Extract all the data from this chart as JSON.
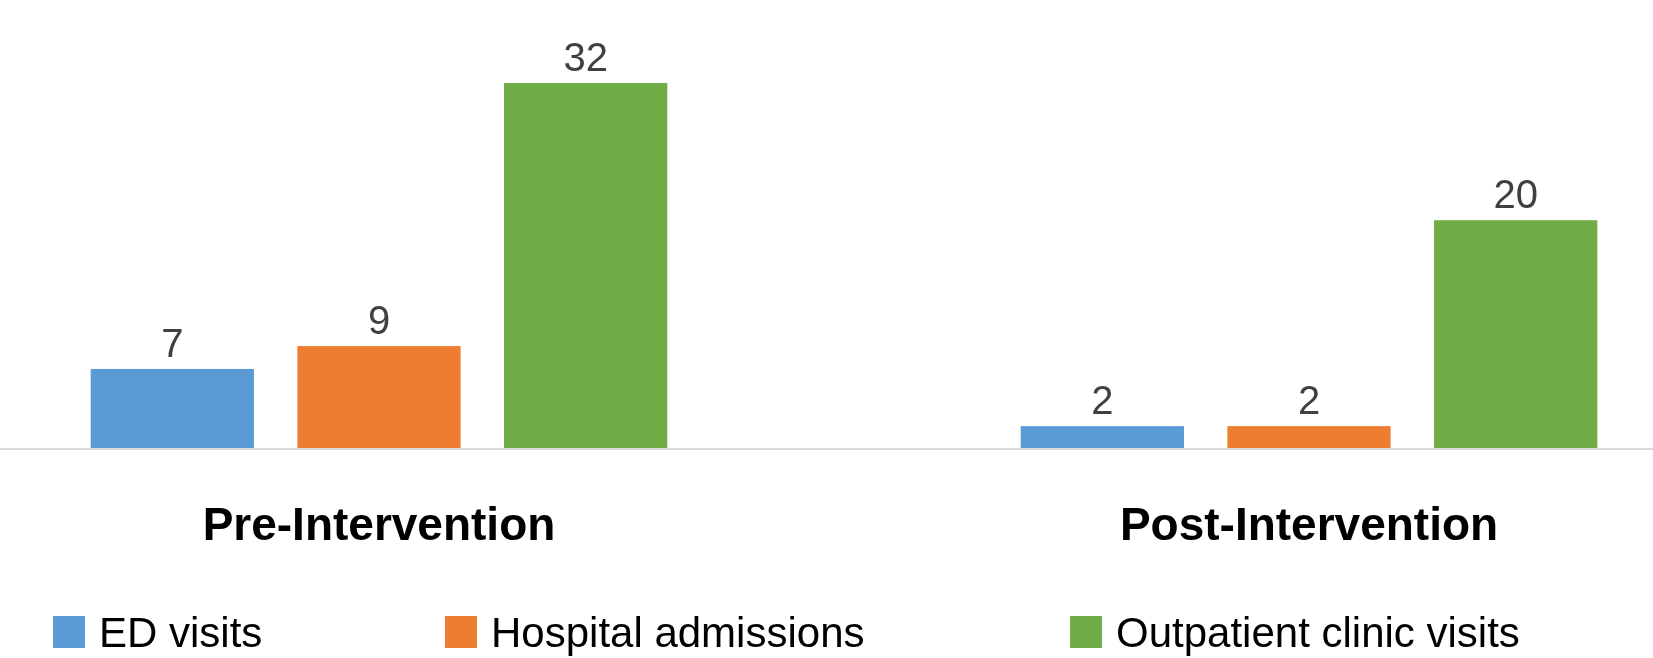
{
  "chart_data": {
    "type": "bar",
    "categories": [
      "Pre-Intervention",
      "Post-Intervention"
    ],
    "series": [
      {
        "name": "ED visits",
        "color": "#5b9bd5",
        "values": [
          7,
          2
        ]
      },
      {
        "name": "Hospital admissions",
        "color": "#ed7d31",
        "values": [
          9,
          2
        ]
      },
      {
        "name": "Outpatient clinic visits",
        "color": "#70ad47",
        "values": [
          32,
          20
        ]
      }
    ],
    "data_labels": true,
    "legend": "bottom"
  }
}
